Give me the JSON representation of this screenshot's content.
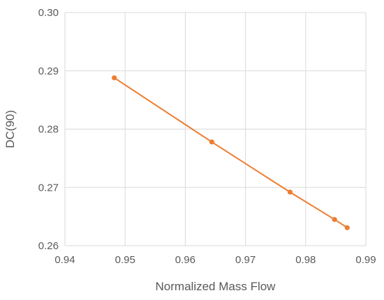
{
  "chart_data": {
    "type": "line",
    "xlabel": "Normalized Mass Flow",
    "ylabel": "DC(90)",
    "xlim": [
      0.94,
      0.99
    ],
    "ylim": [
      0.26,
      0.3
    ],
    "x_ticks": [
      "0.94",
      "0.95",
      "0.96",
      "0.97",
      "0.98",
      "0.99"
    ],
    "y_ticks": [
      "0.26",
      "0.27",
      "0.28",
      "0.29",
      "0.30"
    ],
    "grid": true,
    "legend": "none",
    "series": [
      {
        "color": "#ED7D31",
        "x": [
          0.9482,
          0.9644,
          0.9774,
          0.9848,
          0.9869
        ],
        "y": [
          0.2888,
          0.2778,
          0.2692,
          0.2645,
          0.2631
        ]
      }
    ]
  }
}
